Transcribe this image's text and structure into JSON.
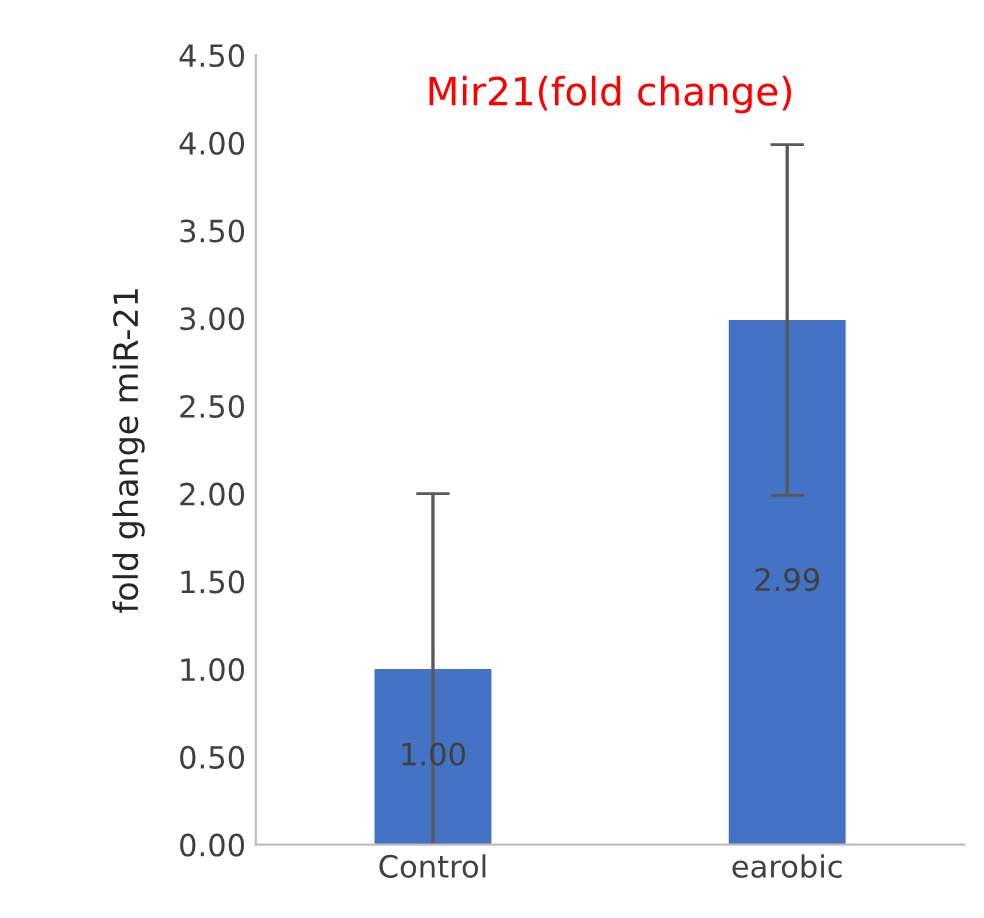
{
  "chart_data": {
    "type": "bar",
    "title": "Mir21(fold change)",
    "ylabel": "fold ghange miR-21",
    "categories": [
      "Control",
      "earobic"
    ],
    "values": [
      1.0,
      2.99
    ],
    "color": "#4472c4",
    "errors": [
      1.0,
      1.0
    ],
    "value_labels": [
      "1.00",
      "2.99"
    ],
    "ylim": [
      0,
      4.5
    ],
    "yticks": [
      {
        "value": 0,
        "label": "0.00"
      },
      {
        "value": 0.5,
        "label": "0.50"
      },
      {
        "value": 1,
        "label": "1.00"
      },
      {
        "value": 1.5,
        "label": "1.50"
      },
      {
        "value": 2,
        "label": "2.00"
      },
      {
        "value": 2.5,
        "label": "2.50"
      },
      {
        "value": 3,
        "label": "3.00"
      },
      {
        "value": 3.5,
        "label": "3.50"
      },
      {
        "value": 4,
        "label": "4.00"
      },
      {
        "value": 4.5,
        "label": "4.50"
      }
    ],
    "grid": false,
    "legend": false
  }
}
